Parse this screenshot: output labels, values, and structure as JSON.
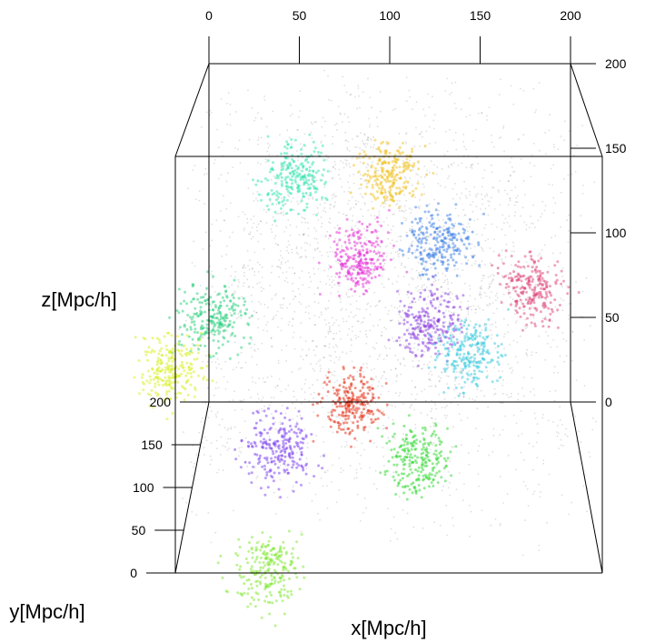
{
  "chart_data": {
    "type": "scatter",
    "dimensions": 3,
    "axes": {
      "x": {
        "label": "x[Mpc/h]",
        "range": [
          0,
          200
        ],
        "ticks": [
          "0",
          "50",
          "100",
          "150",
          "200"
        ]
      },
      "y": {
        "label": "y[Mpc/h]",
        "range": [
          0,
          200
        ],
        "ticks": [
          "0",
          "50",
          "100",
          "150",
          "200"
        ]
      },
      "z": {
        "label": "z[Mpc/h]",
        "range": [
          0,
          200
        ],
        "ticks": [
          "0",
          "50",
          "100",
          "150",
          "200"
        ]
      }
    },
    "grid": false,
    "legend": "none",
    "background_particles": {
      "color": "#000000",
      "style": "faint dense points forming filaments, throughout the box"
    },
    "structures": [
      {
        "color": "#2ee6b0",
        "center": [
          55,
          20,
          185
        ]
      },
      {
        "color": "#f2c21b",
        "center": [
          100,
          120,
          160
        ]
      },
      {
        "color": "#e627d6",
        "center": [
          85,
          120,
          115
        ]
      },
      {
        "color": "#3a7de8",
        "center": [
          125,
          100,
          130
        ]
      },
      {
        "color": "#8a3ce0",
        "center": [
          120,
          120,
          80
        ]
      },
      {
        "color": "#34c9e0",
        "center": [
          140,
          100,
          70
        ]
      },
      {
        "color": "#26d07c",
        "center": [
          15,
          40,
          110
        ]
      },
      {
        "color": "#d8f01a",
        "center": [
          -5,
          35,
          85
        ]
      },
      {
        "color": "#e0457a",
        "center": [
          175,
          140,
          90
        ]
      },
      {
        "color": "#e62a10",
        "center": [
          80,
          110,
          40
        ]
      },
      {
        "color": "#7a3cf0",
        "center": [
          45,
          90,
          25
        ]
      },
      {
        "color": "#2bd82b",
        "center": [
          115,
          110,
          10
        ]
      },
      {
        "color": "#7ee82b",
        "center": [
          40,
          70,
          -30
        ]
      }
    ]
  }
}
